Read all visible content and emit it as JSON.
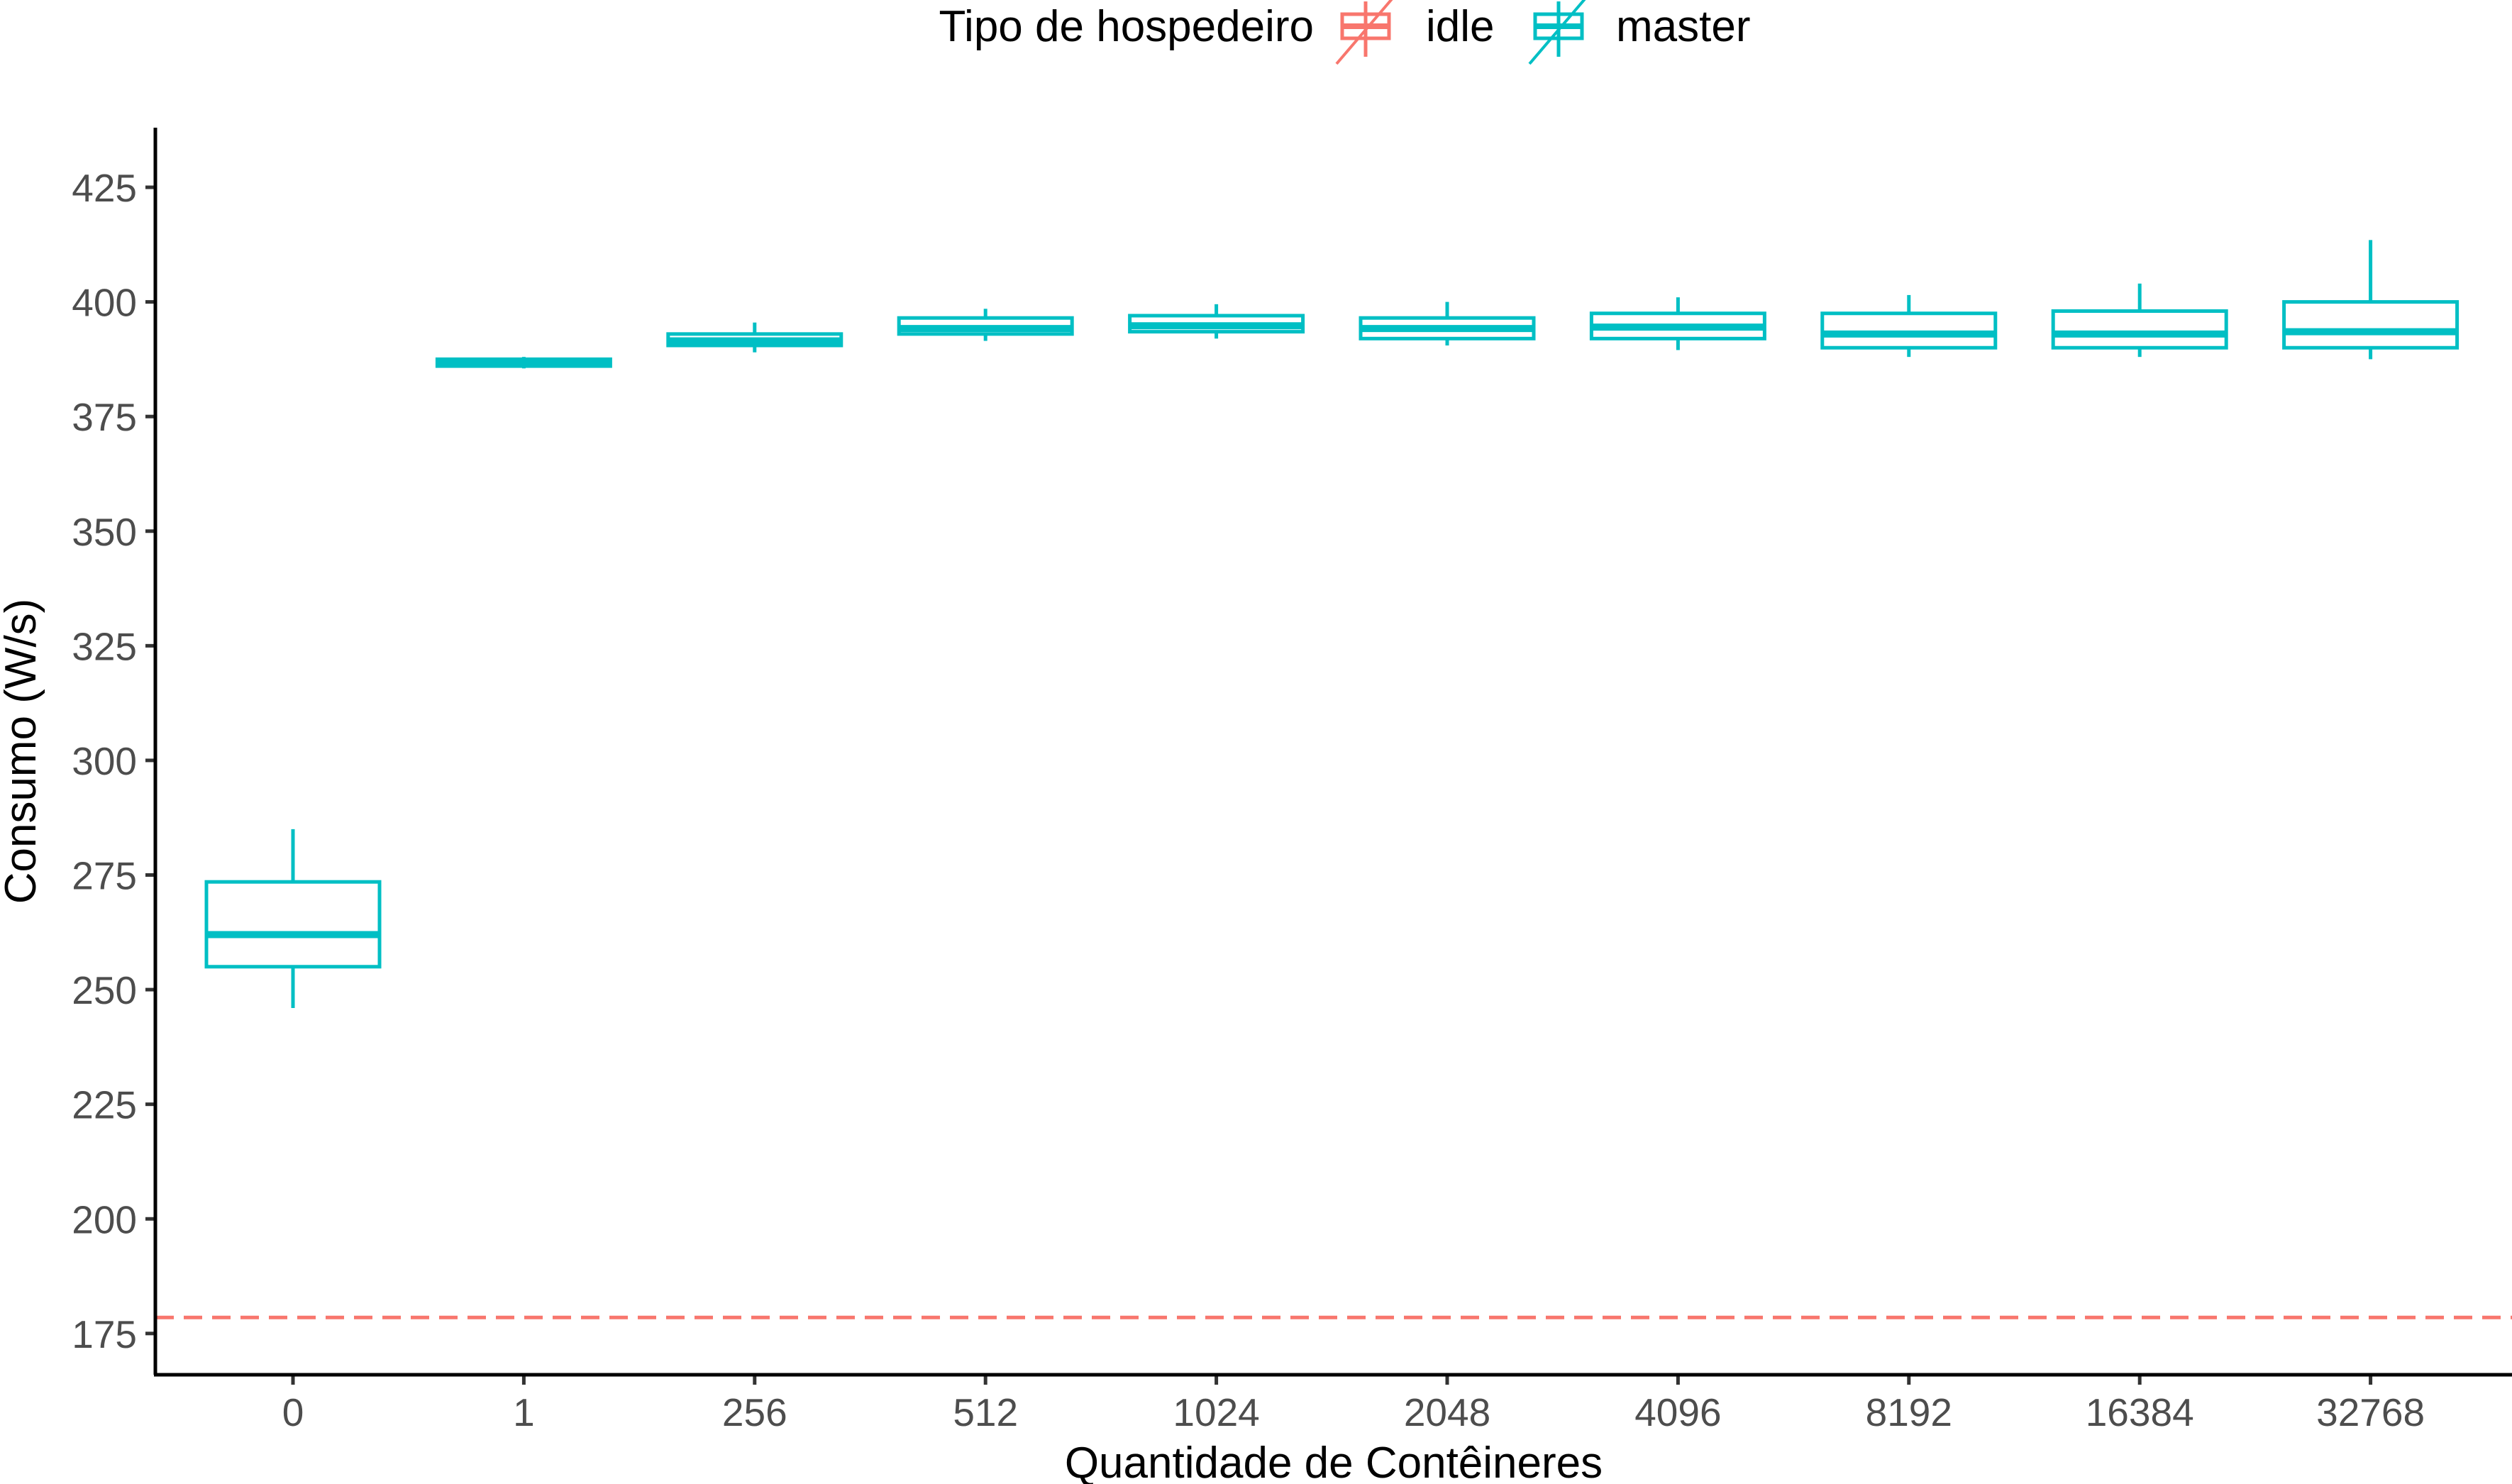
{
  "chart_data": {
    "type": "box",
    "title": "",
    "xlabel": "Quantidade de Contêineres",
    "ylabel": "Consumo (W/s)",
    "ylim": [
      166,
      438
    ],
    "yticks": [
      175,
      200,
      225,
      250,
      275,
      300,
      325,
      350,
      375,
      400,
      425
    ],
    "categories": [
      "0",
      "1",
      "256",
      "512",
      "1024",
      "2048",
      "4096",
      "8192",
      "16384",
      "32768"
    ],
    "legend": {
      "title": "Tipo de hospedeiro",
      "position": "top",
      "entries": [
        {
          "name": "idle",
          "color": "#F8766D"
        },
        {
          "name": "master",
          "color": "#00BFC4"
        }
      ]
    },
    "series": [
      {
        "name": "master",
        "color": "#00BFC4",
        "boxes": [
          {
            "category": "0",
            "min": 246,
            "q1": 255,
            "median": 262,
            "q3": 273.5,
            "max": 285
          },
          {
            "category": "1",
            "min": 385.5,
            "q1": 386,
            "median": 386.8,
            "q3": 387.5,
            "max": 388
          },
          {
            "category": "256",
            "min": 389,
            "q1": 390.5,
            "median": 391.5,
            "q3": 393,
            "max": 395.5
          },
          {
            "category": "512",
            "min": 391.5,
            "q1": 393,
            "median": 394.2,
            "q3": 396.5,
            "max": 398.5
          },
          {
            "category": "1024",
            "min": 392,
            "q1": 393.5,
            "median": 394.8,
            "q3": 397,
            "max": 399.5
          },
          {
            "category": "2048",
            "min": 390.5,
            "q1": 392,
            "median": 394.2,
            "q3": 396.5,
            "max": 400
          },
          {
            "category": "4096",
            "min": 389.5,
            "q1": 392,
            "median": 394.5,
            "q3": 397.5,
            "max": 401
          },
          {
            "category": "8192",
            "min": 388,
            "q1": 390,
            "median": 393,
            "q3": 397.5,
            "max": 401.5
          },
          {
            "category": "16384",
            "min": 388,
            "q1": 390,
            "median": 393,
            "q3": 398,
            "max": 404
          },
          {
            "category": "32768",
            "min": 387.5,
            "q1": 390,
            "median": 393.5,
            "q3": 400,
            "max": 413.5
          }
        ]
      },
      {
        "name": "idle",
        "color": "#F8766D",
        "reference_line": 178.5
      }
    ]
  }
}
